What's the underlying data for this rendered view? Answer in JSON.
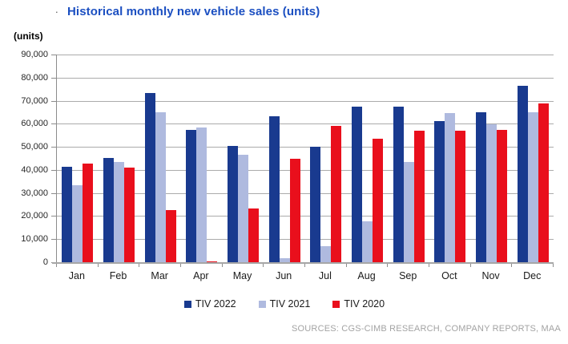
{
  "figure": {
    "title_prefix": ".",
    "title": "Historical monthly new vehicle sales (units)",
    "units_label": "(units)",
    "source": "SOURCES: CGS-CIMB RESEARCH, COMPANY REPORTS, MAA",
    "title_color": "#1B4FC1",
    "source_color": "#A3A3A3"
  },
  "chart_data": {
    "type": "bar",
    "title": "Historical monthly new vehicle sales (units)",
    "xlabel": "",
    "ylabel": "(units)",
    "ylim": [
      0,
      90000
    ],
    "ytick_step": 10000,
    "ytick_labels": [
      "0",
      "10,000",
      "20,000",
      "30,000",
      "40,000",
      "50,000",
      "60,000",
      "70,000",
      "80,000",
      "90,000"
    ],
    "grid": true,
    "legend_position": "bottom",
    "categories": [
      "Jan",
      "Feb",
      "Mar",
      "Apr",
      "May",
      "Jun",
      "Jul",
      "Aug",
      "Sep",
      "Oct",
      "Nov",
      "Dec"
    ],
    "series": [
      {
        "name": "TIV 2022",
        "color": "#193A8F",
        "values": [
          41500,
          45000,
          73200,
          57500,
          50300,
          63400,
          50000,
          67500,
          67300,
          61100,
          65000,
          76600
        ]
      },
      {
        "name": "TIV 2021",
        "color": "#AFBADF",
        "values": [
          33400,
          43300,
          64900,
          58300,
          46700,
          1900,
          7100,
          17800,
          43600,
          64600,
          59600,
          65100
        ]
      },
      {
        "name": "TIV 2020",
        "color": "#E90F1C",
        "values": [
          42900,
          41000,
          22500,
          150,
          23300,
          44700,
          58900,
          53600,
          57000,
          57100,
          57200,
          68700
        ]
      }
    ]
  }
}
